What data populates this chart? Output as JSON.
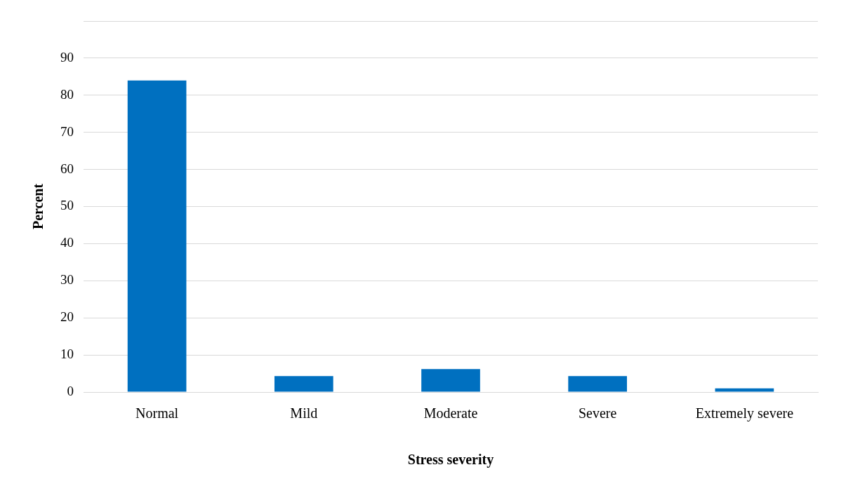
{
  "chart_data": {
    "type": "bar",
    "xlabel": "Stress severity",
    "ylabel": "Percent",
    "categories": [
      "Normal",
      "Mild",
      "Moderate",
      "Severe",
      "Extremely severe"
    ],
    "values": [
      84,
      4.3,
      6.2,
      4.3,
      1
    ],
    "color": "#0070c0",
    "ylim": [
      0,
      100
    ],
    "yticks": [
      0,
      10,
      20,
      30,
      40,
      50,
      60,
      70,
      80,
      90,
      {
        "value": 100,
        "label": null
      }
    ],
    "grid": "y",
    "legend": false
  }
}
